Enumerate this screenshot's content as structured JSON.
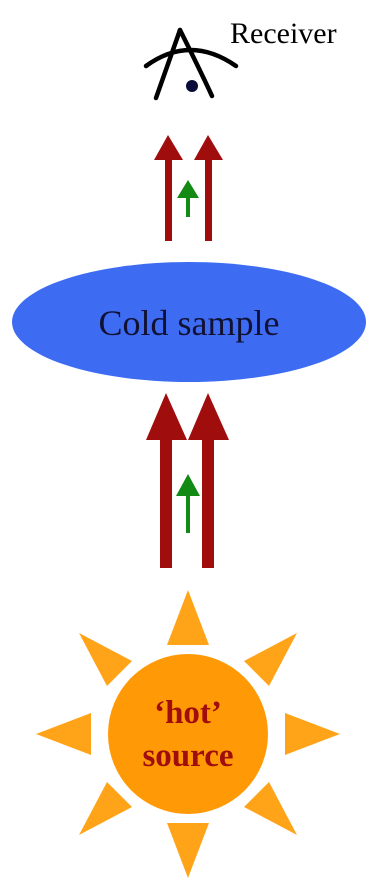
{
  "receiver": {
    "label": "Receiver",
    "eye_stroke": "#000000",
    "pupil_color": "#0b0b3a"
  },
  "sample": {
    "label": "Cold sample",
    "fill": "#3d6cf2",
    "text_color": "#111133"
  },
  "source": {
    "label_line1": "‘hot’",
    "label_line2": "source",
    "disc_fill": "#ff9a06",
    "ray_fill": "#ffa418",
    "text_color": "#a00d0d"
  },
  "arrows": {
    "radiation_color": "#a00d0d",
    "signal_color": "#138a13"
  }
}
